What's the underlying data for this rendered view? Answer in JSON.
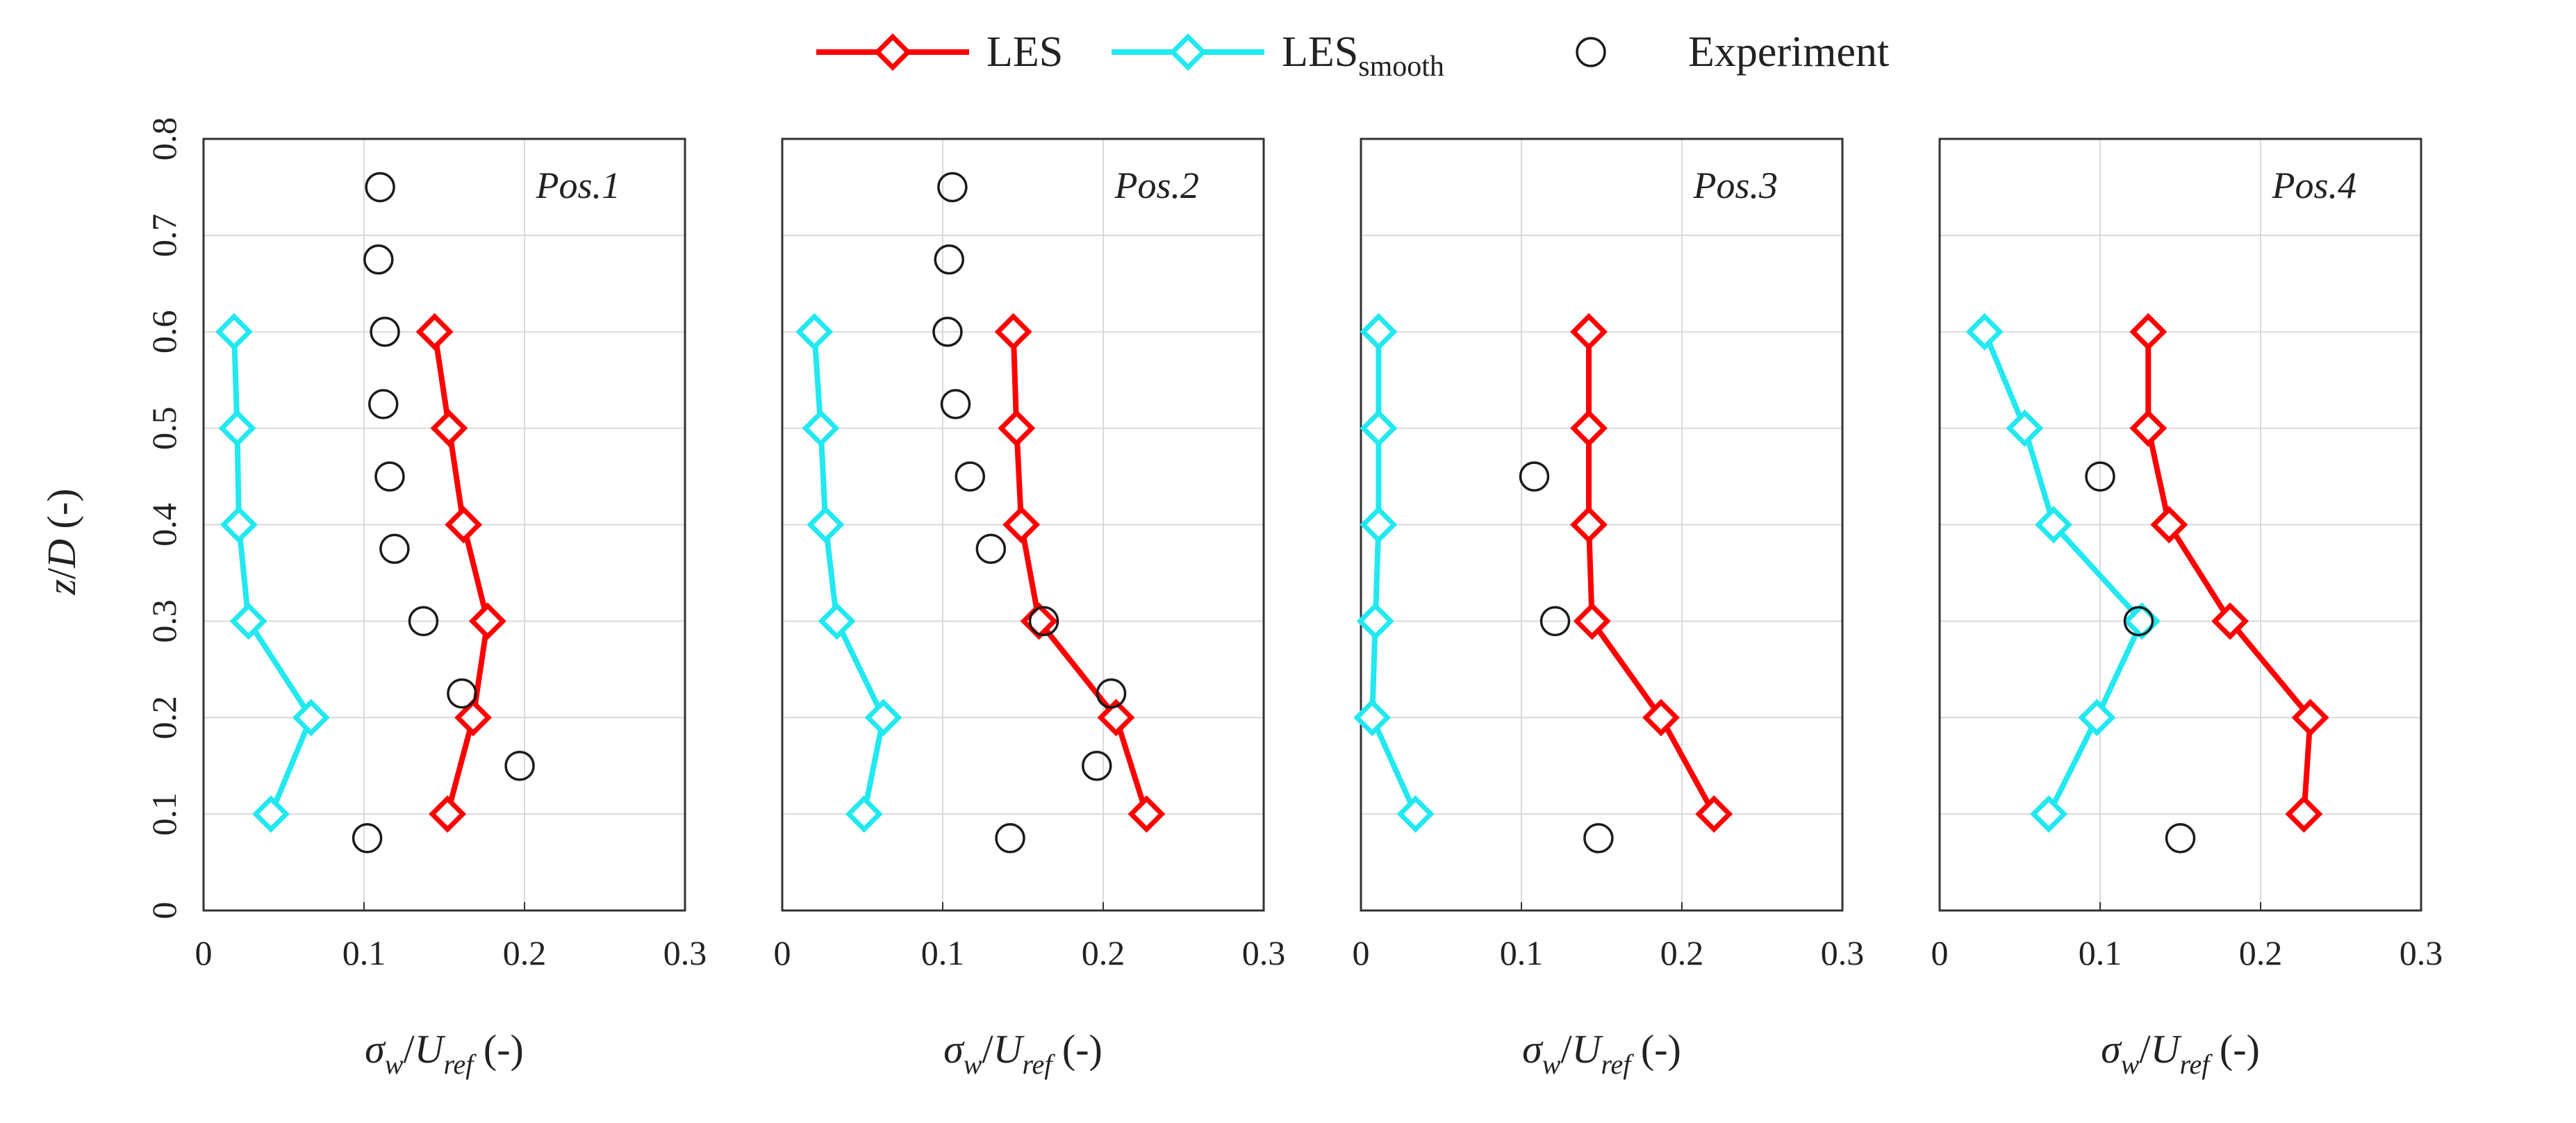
{
  "chart_data": {
    "type": "line",
    "ylabel": "z/D (-)",
    "xlabel": "σw/Uref (-)",
    "xlabel_parts": {
      "sigma": "σ",
      "w": "w",
      "slash": "/",
      "U": "U",
      "ref": "ref",
      "unit": " (-)"
    },
    "ylabel_parts": {
      "z": "z",
      "slash": "/",
      "D": "D",
      "unit": " (-)"
    },
    "xlim": [
      0,
      0.3
    ],
    "ylim": [
      0,
      0.8
    ],
    "x_ticks": [
      "0",
      "0.1",
      "0.2",
      "0.3"
    ],
    "y_ticks": [
      "0",
      "0.1",
      "0.2",
      "0.3",
      "0.4",
      "0.5",
      "0.6",
      "0.7",
      "0.8"
    ],
    "grid": true,
    "legend": {
      "position": "top-center",
      "entries": [
        {
          "key": "les",
          "label": "LES",
          "marker": "diamond",
          "line": true
        },
        {
          "key": "les_smooth",
          "label": "LES",
          "subscript": "smooth",
          "marker": "diamond",
          "line": true
        },
        {
          "key": "exp",
          "label": "Experiment",
          "marker": "circle",
          "line": false
        }
      ]
    },
    "colors": {
      "les": "#ff0000",
      "les_smooth": "#22e8f0",
      "exp": "#1a1a1a"
    },
    "panels": [
      {
        "title": "Pos.1",
        "series": [
          {
            "key": "les",
            "name": "LES",
            "x": [
              0.152,
              0.168,
              0.177,
              0.162,
              0.153,
              0.144
            ],
            "y": [
              0.1,
              0.2,
              0.3,
              0.4,
              0.5,
              0.6
            ]
          },
          {
            "key": "les_smooth",
            "name": "LESsmooth",
            "x": [
              0.042,
              0.067,
              0.028,
              0.022,
              0.021,
              0.019
            ],
            "y": [
              0.1,
              0.2,
              0.3,
              0.4,
              0.5,
              0.6
            ]
          },
          {
            "key": "exp",
            "name": "Experiment",
            "x": [
              0.102,
              0.197,
              0.161,
              0.137,
              0.119,
              0.116,
              0.112,
              0.113,
              0.109,
              0.11
            ],
            "y": [
              0.075,
              0.15,
              0.225,
              0.3,
              0.375,
              0.45,
              0.525,
              0.6,
              0.675,
              0.75
            ]
          }
        ]
      },
      {
        "title": "Pos.2",
        "series": [
          {
            "key": "les",
            "name": "LES",
            "x": [
              0.227,
              0.208,
              0.16,
              0.149,
              0.146,
              0.144
            ],
            "y": [
              0.1,
              0.2,
              0.3,
              0.4,
              0.5,
              0.6
            ]
          },
          {
            "key": "les_smooth",
            "name": "LESsmooth",
            "x": [
              0.051,
              0.063,
              0.034,
              0.027,
              0.024,
              0.02
            ],
            "y": [
              0.1,
              0.2,
              0.3,
              0.4,
              0.5,
              0.6
            ]
          },
          {
            "key": "exp",
            "name": "Experiment",
            "x": [
              0.142,
              0.196,
              0.205,
              0.163,
              0.13,
              0.117,
              0.108,
              0.103,
              0.104,
              0.106
            ],
            "y": [
              0.075,
              0.15,
              0.225,
              0.3,
              0.375,
              0.45,
              0.525,
              0.6,
              0.675,
              0.75
            ]
          }
        ]
      },
      {
        "title": "Pos.3",
        "series": [
          {
            "key": "les",
            "name": "LES",
            "x": [
              0.22,
              0.187,
              0.144,
              0.142,
              0.142,
              0.142
            ],
            "y": [
              0.1,
              0.2,
              0.3,
              0.4,
              0.5,
              0.6
            ]
          },
          {
            "key": "les_smooth",
            "name": "LESsmooth",
            "x": [
              0.034,
              0.007,
              0.009,
              0.011,
              0.011,
              0.011
            ],
            "y": [
              0.1,
              0.2,
              0.3,
              0.4,
              0.5,
              0.6
            ]
          },
          {
            "key": "exp",
            "name": "Experiment",
            "x": [
              0.148,
              0.121,
              0.108
            ],
            "y": [
              0.075,
              0.3,
              0.45
            ]
          }
        ]
      },
      {
        "title": "Pos.4",
        "series": [
          {
            "key": "les",
            "name": "LES",
            "x": [
              0.227,
              0.231,
              0.181,
              0.143,
              0.13,
              0.13
            ],
            "y": [
              0.1,
              0.2,
              0.3,
              0.4,
              0.5,
              0.6
            ]
          },
          {
            "key": "les_smooth",
            "name": "LESsmooth",
            "x": [
              0.068,
              0.098,
              0.126,
              0.071,
              0.053,
              0.028
            ],
            "y": [
              0.1,
              0.2,
              0.3,
              0.4,
              0.5,
              0.6
            ]
          },
          {
            "key": "exp",
            "name": "Experiment",
            "x": [
              0.15,
              0.124,
              0.1
            ],
            "y": [
              0.075,
              0.3,
              0.45
            ]
          }
        ]
      }
    ]
  }
}
